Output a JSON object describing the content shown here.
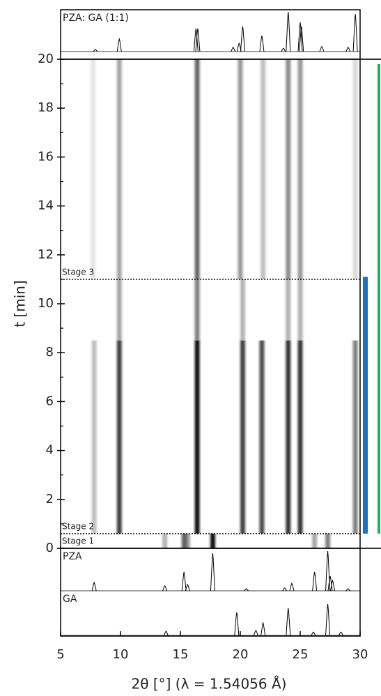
{
  "chart_data": {
    "type": "heatmap",
    "xlabel": "2θ [°] (λ = 1.54056 Å)",
    "ylabel": "t [min]",
    "xlim": [
      5,
      30
    ],
    "xticks": [
      5,
      10,
      15,
      20,
      25,
      30
    ],
    "ylim": [
      0,
      20
    ],
    "yticks": [
      0,
      2,
      4,
      6,
      8,
      10,
      12,
      14,
      16,
      18,
      20
    ],
    "bands": [
      {
        "x": 13.7,
        "t": [
          0,
          0.6
        ],
        "intensity": 0.3
      },
      {
        "x": 15.3,
        "t": [
          0,
          0.6
        ],
        "intensity": 0.6
      },
      {
        "x": 15.6,
        "t": [
          0,
          0.6
        ],
        "intensity": 0.4
      },
      {
        "x": 17.7,
        "t": [
          0,
          0.6
        ],
        "intensity": 0.95
      },
      {
        "x": 26.2,
        "t": [
          0,
          0.6
        ],
        "intensity": 0.35
      },
      {
        "x": 27.3,
        "t": [
          0,
          0.6
        ],
        "intensity": 0.5
      },
      {
        "x": 7.8,
        "t": [
          0.6,
          8.5
        ],
        "intensity": 0.25
      },
      {
        "x": 9.9,
        "t": [
          0.6,
          8.5
        ],
        "intensity": 0.75
      },
      {
        "x": 16.4,
        "t": [
          0.6,
          8.5
        ],
        "intensity": 0.95
      },
      {
        "x": 20.2,
        "t": [
          0.6,
          8.5
        ],
        "intensity": 0.75
      },
      {
        "x": 21.8,
        "t": [
          0.6,
          8.5
        ],
        "intensity": 0.7
      },
      {
        "x": 24.0,
        "t": [
          0.6,
          8.5
        ],
        "intensity": 0.8
      },
      {
        "x": 25.0,
        "t": [
          0.6,
          8.5
        ],
        "intensity": 0.8
      },
      {
        "x": 29.6,
        "t": [
          0.6,
          8.5
        ],
        "intensity": 0.5
      },
      {
        "x": 9.9,
        "t": [
          8.5,
          11
        ],
        "intensity": 0.35
      },
      {
        "x": 16.4,
        "t": [
          8.5,
          11
        ],
        "intensity": 0.5
      },
      {
        "x": 20.2,
        "t": [
          8.5,
          11
        ],
        "intensity": 0.3
      },
      {
        "x": 24.0,
        "t": [
          8.5,
          11
        ],
        "intensity": 0.3
      },
      {
        "x": 25.0,
        "t": [
          8.5,
          11
        ],
        "intensity": 0.3
      },
      {
        "x": 7.7,
        "t": [
          11,
          20
        ],
        "intensity": 0.1
      },
      {
        "x": 9.9,
        "t": [
          11,
          20
        ],
        "intensity": 0.35
      },
      {
        "x": 16.4,
        "t": [
          11,
          20
        ],
        "intensity": 0.6
      },
      {
        "x": 20.0,
        "t": [
          11,
          20
        ],
        "intensity": 0.4
      },
      {
        "x": 21.9,
        "t": [
          11,
          20
        ],
        "intensity": 0.25
      },
      {
        "x": 24.0,
        "t": [
          11,
          20
        ],
        "intensity": 0.45
      },
      {
        "x": 25.0,
        "t": [
          11,
          20
        ],
        "intensity": 0.4
      },
      {
        "x": 29.6,
        "t": [
          11,
          20
        ],
        "intensity": 0.15
      }
    ],
    "stage_lines": [
      0.6,
      11
    ],
    "stage_labels": [
      {
        "label": "Stage 1",
        "t": 0
      },
      {
        "label": "Stage 2",
        "t": 0.6
      },
      {
        "label": "Stage 3",
        "t": 11
      }
    ],
    "phase_bars": [
      {
        "color": "#1f6fbf",
        "t": [
          0.6,
          11.1
        ]
      },
      {
        "color": "#22b05a",
        "t": [
          0.6,
          19.8
        ]
      }
    ],
    "reference_patterns": [
      {
        "name": "PZA: GA (1:1)",
        "peaks_x": [
          7.9,
          9.9,
          16.3,
          16.45,
          19.4,
          19.9,
          20.2,
          21.8,
          23.6,
          24.0,
          25.0,
          25.1,
          26.8,
          29.0,
          29.6
        ],
        "peaks_height": [
          0.05,
          0.3,
          0.55,
          0.55,
          0.1,
          0.2,
          0.6,
          0.38,
          0.08,
          0.95,
          0.7,
          0.6,
          0.12,
          0.1,
          0.9
        ]
      },
      {
        "name": "PZA",
        "peaks_x": [
          7.8,
          13.7,
          15.3,
          15.6,
          17.7,
          20.5,
          23.7,
          24.3,
          26.2,
          27.3,
          27.5,
          27.7,
          29.0
        ],
        "peaks_height": [
          0.2,
          0.12,
          0.45,
          0.15,
          0.9,
          0.05,
          0.07,
          0.18,
          0.45,
          0.95,
          0.35,
          0.25,
          0.05
        ]
      },
      {
        "name": "GA",
        "peaks_x": [
          13.8,
          19.7,
          21.3,
          21.9,
          24.0,
          26.1,
          27.3,
          28.4
        ],
        "peaks_height": [
          0.1,
          0.55,
          0.12,
          0.3,
          0.65,
          0.08,
          0.75,
          0.08
        ]
      }
    ]
  }
}
